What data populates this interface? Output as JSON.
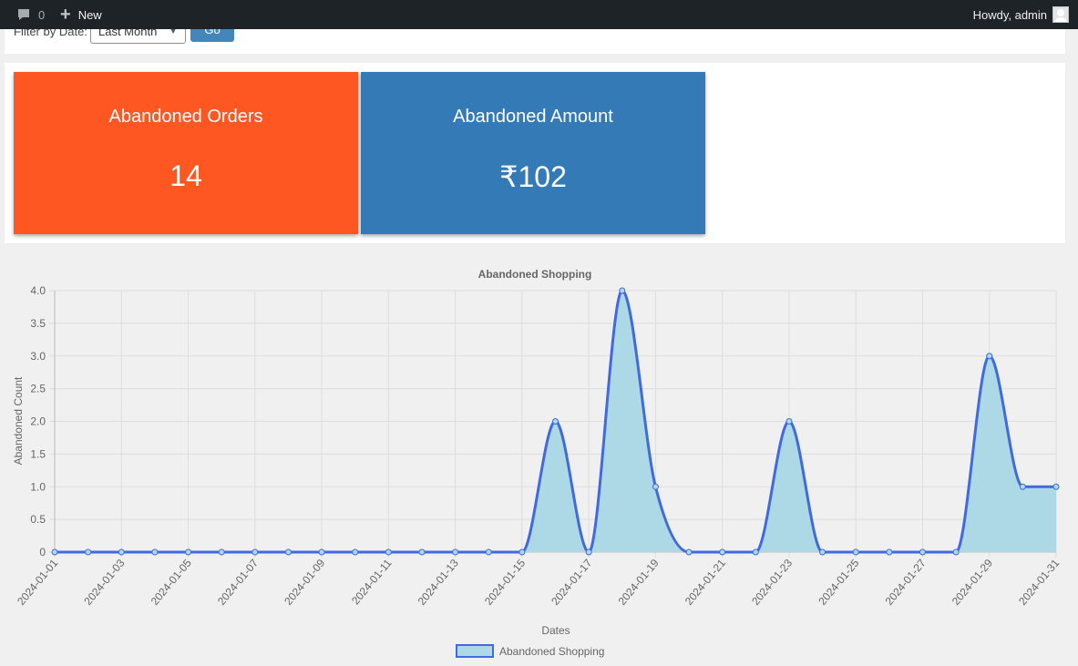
{
  "adminbar": {
    "comment_count": "0",
    "new_label": "New",
    "howdy": "Howdy, admin",
    "comment_icon": "speech-bubble-icon",
    "new_icon": "plus-icon",
    "avatar_icon": "avatar-icon"
  },
  "filter": {
    "label": "Filter by Date:",
    "selected": "Last Month",
    "go_label": "Go"
  },
  "cards": {
    "orders": {
      "title": "Abandoned Orders",
      "value": "14",
      "color": "#ff5722"
    },
    "amount": {
      "title": "Abandoned Amount",
      "value": "₹102",
      "color": "#337ab7"
    }
  },
  "chart_data": {
    "type": "area",
    "title": "Abandoned Shopping",
    "xlabel": "Dates",
    "ylabel": "Abandoned Count",
    "ylim": [
      0,
      4
    ],
    "yticks": [
      "0",
      "0.5",
      "1.0",
      "1.5",
      "2.0",
      "2.5",
      "3.0",
      "3.5",
      "4.0"
    ],
    "grid": true,
    "legend_position": "bottom",
    "x": [
      "2024-01-01",
      "2024-01-02",
      "2024-01-03",
      "2024-01-04",
      "2024-01-05",
      "2024-01-06",
      "2024-01-07",
      "2024-01-08",
      "2024-01-09",
      "2024-01-10",
      "2024-01-11",
      "2024-01-12",
      "2024-01-13",
      "2024-01-14",
      "2024-01-15",
      "2024-01-16",
      "2024-01-17",
      "2024-01-18",
      "2024-01-19",
      "2024-01-20",
      "2024-01-21",
      "2024-01-22",
      "2024-01-23",
      "2024-01-24",
      "2024-01-25",
      "2024-01-26",
      "2024-01-27",
      "2024-01-28",
      "2024-01-29",
      "2024-01-30",
      "2024-01-31"
    ],
    "series": [
      {
        "name": "Abandoned Shopping",
        "values": [
          0,
          0,
          0,
          0,
          0,
          0,
          0,
          0,
          0,
          0,
          0,
          0,
          0,
          0,
          0,
          2,
          0,
          4,
          1,
          0,
          0,
          0,
          2,
          0,
          0,
          0,
          0,
          0,
          3,
          1,
          1
        ],
        "line_color": "#4169e1",
        "fill_color": "#add8e6"
      }
    ]
  }
}
